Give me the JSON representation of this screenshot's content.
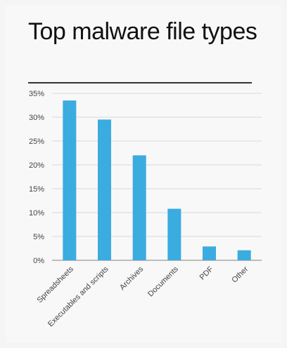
{
  "header": {
    "title": "Top malware file types"
  },
  "colors": {
    "bar": "#3aace0",
    "grid": "#d9d9d9",
    "axis": "#999999",
    "text": "#444444"
  },
  "chart_data": {
    "type": "bar",
    "title": "Top malware file types",
    "categories": [
      "Spreadsheets",
      "Executables and scripts",
      "Archives",
      "Documents",
      "PDF",
      "Other"
    ],
    "values": [
      33.5,
      29.5,
      22,
      10.8,
      2.9,
      2.1
    ],
    "ylim": [
      0,
      35
    ],
    "yticks": [
      0,
      5,
      10,
      15,
      20,
      25,
      30,
      35
    ],
    "ytick_labels": [
      "0%",
      "5%",
      "10%",
      "15%",
      "20%",
      "25%",
      "30%",
      "35%"
    ],
    "grid": true,
    "legend": "none"
  }
}
